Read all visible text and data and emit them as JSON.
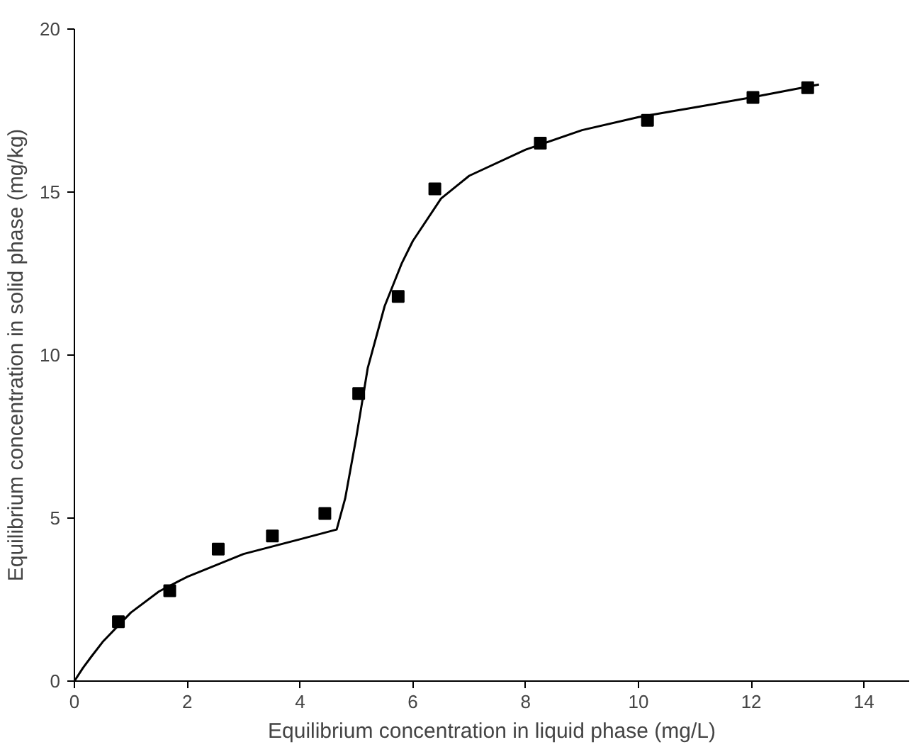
{
  "chart_data": {
    "type": "scatter",
    "xlabel": "Equilibrium concentration in liquid phase (mg/L)",
    "ylabel": "Equilibrium concentration in solid phase (mg/kg)",
    "xlim": [
      0,
      14.8
    ],
    "ylim": [
      0,
      20
    ],
    "xticks": [
      0,
      2,
      4,
      6,
      8,
      10,
      12,
      14
    ],
    "yticks": [
      0,
      5,
      10,
      15,
      20
    ],
    "grid": false,
    "series": [
      {
        "marker": "square",
        "color": "#000000",
        "x": [
          0.78,
          1.69,
          2.55,
          3.51,
          4.44,
          5.04,
          5.74,
          6.39,
          8.26,
          10.16,
          12.03,
          13.0
        ],
        "values": [
          1.82,
          2.77,
          4.05,
          4.45,
          5.14,
          8.82,
          11.8,
          15.1,
          16.5,
          17.2,
          17.9,
          18.2
        ]
      },
      {
        "type": "line",
        "line_style": "solid",
        "color": "#000000",
        "x": [
          0,
          0.15,
          0.3,
          0.5,
          1,
          1.5,
          2,
          3,
          4,
          4.65,
          4.8,
          5,
          5.2,
          5.5,
          5.8,
          6,
          6.5,
          7,
          8,
          9,
          10,
          11,
          12,
          13.2
        ],
        "values": [
          0,
          0.4,
          0.75,
          1.2,
          2.1,
          2.75,
          3.2,
          3.9,
          4.35,
          4.65,
          5.6,
          7.5,
          9.6,
          11.5,
          12.8,
          13.5,
          14.8,
          15.5,
          16.3,
          16.9,
          17.3,
          17.6,
          17.9,
          18.3
        ]
      }
    ]
  }
}
